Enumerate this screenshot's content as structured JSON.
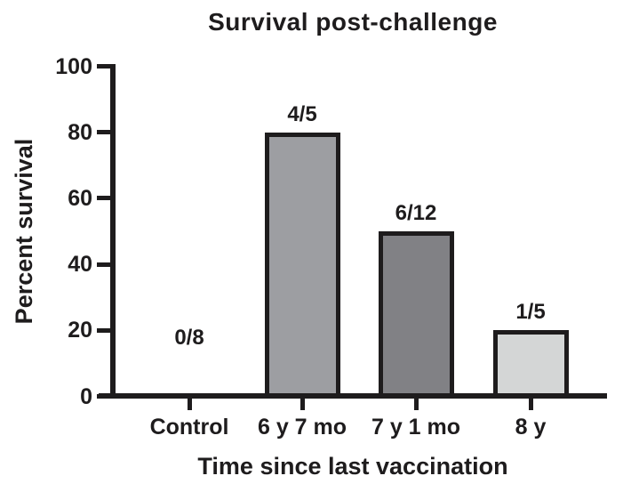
{
  "figure": {
    "background_color": "#ffffff",
    "ink_color": "#1e1c1d"
  },
  "chart_data": {
    "type": "bar",
    "title": "Survival post-challenge",
    "xlabel": "Time since last vaccination",
    "ylabel": "Percent survival",
    "categories": [
      "Control",
      "6 y 7 mo",
      "7 y 1 mo",
      "8 y"
    ],
    "values": [
      0,
      80,
      50,
      20
    ],
    "bar_labels": [
      "0/8",
      "4/5",
      "6/12",
      "1/5"
    ],
    "bar_fill_colors": [
      "none",
      "#9d9ea2",
      "#818185",
      "#d4d6d6"
    ],
    "bar_border_color": "#1e1c1d",
    "ylim": [
      0,
      100
    ],
    "yticks": [
      0,
      20,
      40,
      60,
      80,
      100
    ],
    "grid": false,
    "legend": "none",
    "tick_direction": "out"
  }
}
